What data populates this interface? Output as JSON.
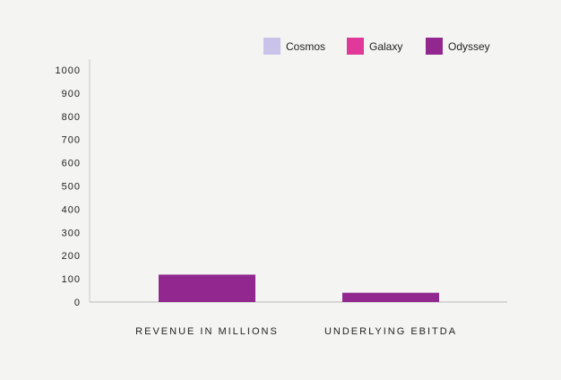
{
  "chart_data": {
    "type": "bar",
    "categories": [
      "REVENUE IN MILLIONS",
      "UNDERLYING EBITDA"
    ],
    "series": [
      {
        "name": "Cosmos",
        "color": "#c9c3ea",
        "values": [
          0,
          0
        ]
      },
      {
        "name": "Galaxy",
        "color": "#e0399a",
        "values": [
          0,
          0
        ]
      },
      {
        "name": "Odyssey",
        "color": "#92278f",
        "values": [
          118,
          40
        ]
      }
    ],
    "ylim": [
      0,
      1000
    ],
    "yticks": [
      "0",
      "100",
      "200",
      "300",
      "400",
      "500",
      "600",
      "700",
      "800",
      "900",
      "1000"
    ],
    "legend_position": "top-right",
    "grid": false
  }
}
